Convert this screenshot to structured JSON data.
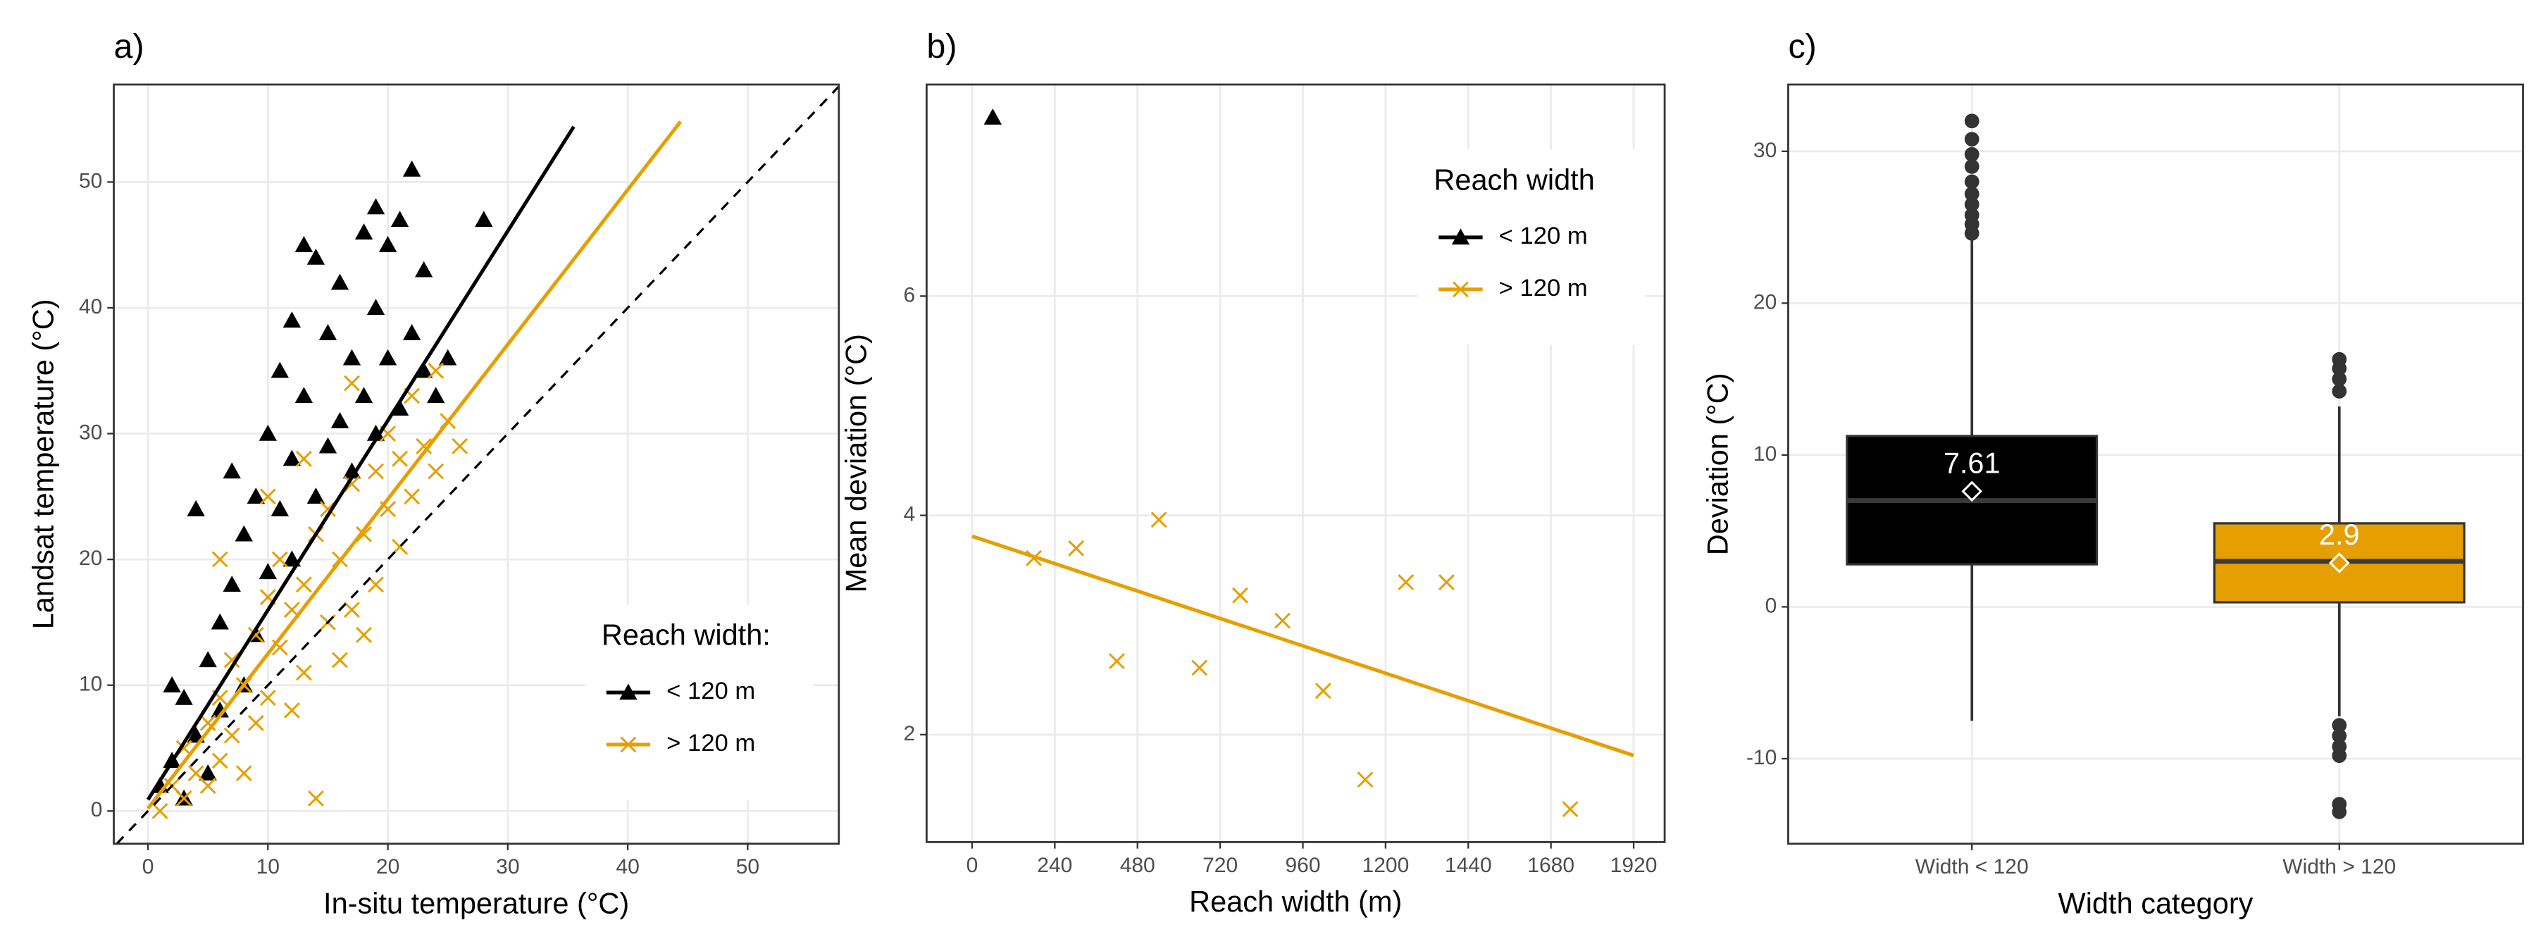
{
  "chart_data": [
    {
      "type": "scatter",
      "panel_label": "a)",
      "x_label": "In-situ temperature (°C)",
      "y_label": "Landsat temperature (°C)",
      "xlim": [
        -2.85,
        57.6
      ],
      "ylim": [
        -2.6,
        57.75
      ],
      "xticks": [
        0,
        10,
        20,
        30,
        40,
        50
      ],
      "yticks": [
        0,
        10,
        20,
        30,
        40,
        50
      ],
      "grid": true,
      "identity_line": true,
      "legend_title": "Reach width:",
      "legend_position": "bottom-right",
      "series": [
        {
          "name": "< 120 m",
          "color": "#000000",
          "marker": "triangle",
          "x": [
            1,
            2,
            3,
            3,
            4,
            5,
            5,
            6,
            6,
            7,
            7,
            8,
            8,
            9,
            9,
            10,
            10,
            11,
            11,
            12,
            12,
            13,
            13,
            14,
            14,
            15,
            15,
            16,
            16,
            17,
            17,
            18,
            18,
            19,
            19,
            20,
            20,
            21,
            21,
            22,
            22,
            23,
            23,
            24,
            25,
            28,
            4,
            2,
            12,
            19
          ],
          "y": [
            2,
            4,
            1,
            9,
            6,
            12,
            3,
            8,
            15,
            27,
            18,
            22,
            10,
            25,
            14,
            30,
            19,
            24,
            35,
            28,
            20,
            45,
            33,
            44,
            25,
            38,
            29,
            42,
            31,
            36,
            27,
            46,
            33,
            40,
            30,
            45,
            36,
            47,
            32,
            51,
            38,
            43,
            35,
            33,
            36,
            47,
            24,
            10,
            39,
            48
          ],
          "fit": {
            "x": [
              0,
              35.5
            ],
            "y": [
              0.9,
              54.4
            ]
          }
        },
        {
          "name": "> 120 m",
          "color": "#E69F00",
          "marker": "x",
          "x": [
            1,
            2,
            3,
            3,
            4,
            5,
            5,
            6,
            6,
            7,
            7,
            8,
            8,
            9,
            9,
            10,
            10,
            11,
            11,
            12,
            12,
            13,
            13,
            14,
            14,
            15,
            15,
            16,
            16,
            17,
            17,
            18,
            18,
            19,
            19,
            20,
            20,
            21,
            21,
            22,
            22,
            23,
            24,
            24,
            25,
            26,
            10,
            6,
            13,
            17
          ],
          "y": [
            0,
            2,
            1,
            5,
            3,
            7,
            2,
            9,
            4,
            6,
            12,
            10,
            3,
            14,
            7,
            17,
            9,
            13,
            20,
            16,
            8,
            18,
            11,
            22,
            1,
            15,
            24,
            20,
            12,
            26,
            16,
            22,
            14,
            27,
            18,
            24,
            30,
            21,
            28,
            33,
            25,
            29,
            27,
            35,
            31,
            29,
            25,
            20,
            28,
            34
          ],
          "fit": {
            "x": [
              0,
              44.4
            ],
            "y": [
              0.2,
              54.8
            ]
          }
        }
      ]
    },
    {
      "type": "scatter",
      "panel_label": "b)",
      "x_label": "Reach width (m)",
      "y_label": "Mean deviation (°C)",
      "xlim": [
        -132,
        2010
      ],
      "ylim": [
        1.02,
        7.93
      ],
      "xticks": [
        0,
        240,
        480,
        720,
        960,
        1200,
        1440,
        1680,
        1920
      ],
      "yticks": [
        2,
        4,
        6
      ],
      "grid": true,
      "identity_line": false,
      "legend_title": "Reach width",
      "legend_position": "top-right",
      "series": [
        {
          "name": "< 120 m",
          "color": "#000000",
          "marker": "triangle",
          "x": [
            60
          ],
          "y": [
            7.63
          ]
        },
        {
          "name": "> 120 m",
          "color": "#E69F00",
          "marker": "x",
          "x": [
            179,
            302,
            420,
            542,
            660,
            778,
            901,
            1019,
            1141,
            1259,
            1377,
            1736
          ],
          "y": [
            3.61,
            3.7,
            2.67,
            3.96,
            2.61,
            3.27,
            3.04,
            2.4,
            1.59,
            3.39,
            3.39,
            1.32
          ],
          "fit": {
            "x": [
              0,
              1920
            ],
            "y": [
              3.81,
              1.81
            ]
          }
        }
      ]
    },
    {
      "type": "boxplot",
      "panel_label": "c)",
      "x_label": "Width category",
      "y_label": "Deviation  (°C)",
      "ylim": [
        -15.6,
        34.4
      ],
      "yticks": [
        -10,
        0,
        10,
        20,
        30
      ],
      "grid": true,
      "categories": [
        "Width < 120",
        "Width > 120"
      ],
      "boxes": [
        {
          "color": "#000000",
          "whisker_low": -7.5,
          "q1": 2.8,
          "median": 7.0,
          "q3": 11.25,
          "whisker_high": 24.2,
          "mean": 7.61,
          "outliers": [
            24.6,
            25.2,
            25.8,
            26.5,
            27.2,
            28.0,
            29.0,
            29.8,
            30.8,
            32.0
          ]
        },
        {
          "color": "#E69F00",
          "whisker_low": -7.2,
          "q1": 0.3,
          "median": 3.0,
          "q3": 5.5,
          "whisker_high": 13.2,
          "mean": 2.9,
          "outliers": [
            14.2,
            15.0,
            15.7,
            16.3,
            -7.8,
            -8.5,
            -9.2,
            -9.8,
            -13.0,
            -13.5
          ]
        }
      ]
    }
  ]
}
